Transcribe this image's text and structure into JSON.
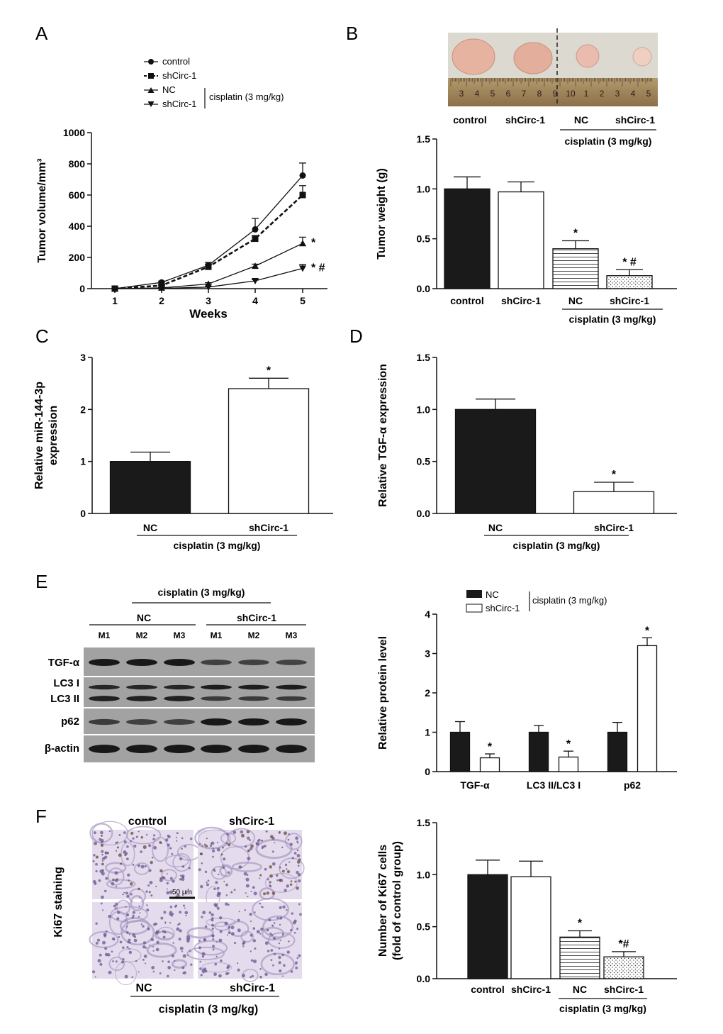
{
  "figure": {
    "panel_labels": [
      "A",
      "B",
      "C",
      "D",
      "E",
      "F"
    ],
    "colors": {
      "dark": "#1a1a1a",
      "white": "#ffffff",
      "axis": "#111111",
      "tissue": "#8c78a8"
    }
  },
  "chart_data": [
    {
      "id": "A",
      "type": "line",
      "xlabel": "Weeks",
      "ylabel": "Tumor volume/mm³",
      "x": [
        1,
        2,
        3,
        4,
        5
      ],
      "xticks": [
        "1",
        "2",
        "3",
        "4",
        "5"
      ],
      "yticks": [
        "0",
        "200",
        "400",
        "600",
        "800",
        "1000"
      ],
      "ylim": [
        0,
        1000
      ],
      "series": [
        {
          "name": "control",
          "marker": "circle",
          "dash": false,
          "values": [
            0,
            40,
            150,
            380,
            725
          ],
          "errors": [
            0,
            8,
            18,
            70,
            80
          ]
        },
        {
          "name": "shCirc-1",
          "marker": "square",
          "dash": true,
          "values": [
            0,
            20,
            140,
            320,
            600
          ],
          "errors": [
            0,
            5,
            15,
            20,
            60
          ]
        },
        {
          "name": "NC",
          "marker": "triangle-up",
          "dash": false,
          "values": [
            0,
            5,
            30,
            145,
            290
          ],
          "errors": [
            0,
            3,
            8,
            12,
            40
          ],
          "annotation": "*"
        },
        {
          "name": "shCirc-1",
          "marker": "triangle-down",
          "dash": false,
          "values": [
            0,
            2,
            10,
            50,
            130
          ],
          "errors": [
            0,
            1,
            3,
            8,
            25
          ],
          "annotation": "* #"
        }
      ],
      "legend_bracket": "cisplatin (3 mg/kg)"
    },
    {
      "id": "B",
      "type": "bar",
      "ylabel": "Tumor weight (g)",
      "categories": [
        "control",
        "shCirc-1",
        "NC",
        "shCirc-1"
      ],
      "values": [
        1.0,
        0.97,
        0.4,
        0.13
      ],
      "errors": [
        0.12,
        0.1,
        0.08,
        0.06
      ],
      "annotations": [
        "",
        "",
        "*",
        "* #"
      ],
      "fills": [
        "dark",
        "white",
        "hlines",
        "dots"
      ],
      "yticks": [
        "0.0",
        "0.5",
        "1.0",
        "1.5"
      ],
      "ylim": [
        0,
        1.5
      ],
      "group_label": "cisplatin (3 mg/kg)",
      "photo_labels": [
        "control",
        "shCirc-1",
        "NC",
        "shCirc-1"
      ],
      "photo_group_label": "cisplatin (3 mg/kg)",
      "ruler_numbers": [
        "3",
        "4",
        "5",
        "6",
        "7",
        "8",
        "9",
        "10",
        "1",
        "2",
        "3",
        "4",
        "5"
      ]
    },
    {
      "id": "C",
      "type": "bar",
      "ylabel": [
        "Relative miR-144-3p",
        "expression"
      ],
      "categories": [
        "NC",
        "shCirc-1"
      ],
      "values": [
        1.0,
        2.4
      ],
      "errors": [
        0.18,
        0.2
      ],
      "annotations": [
        "",
        "*"
      ],
      "fills": [
        "dark",
        "white"
      ],
      "yticks": [
        "0",
        "1",
        "2",
        "3"
      ],
      "ylim": [
        0,
        3
      ],
      "group_label": "cisplatin (3 mg/kg)"
    },
    {
      "id": "D",
      "type": "bar",
      "ylabel": "Relative TGF-α expression",
      "categories": [
        "NC",
        "shCirc-1"
      ],
      "values": [
        1.0,
        0.21
      ],
      "errors": [
        0.1,
        0.09
      ],
      "annotations": [
        "",
        "*"
      ],
      "fills": [
        "dark",
        "white"
      ],
      "yticks": [
        "0.0",
        "0.5",
        "1.0",
        "1.5"
      ],
      "ylim": [
        0,
        1.5
      ],
      "group_label": "cisplatin (3 mg/kg)"
    },
    {
      "id": "E",
      "type": "bar",
      "ylabel": "Relative protein level",
      "categories": [
        "TGF-α",
        "LC3 II/LC3 I",
        "p62"
      ],
      "series": [
        {
          "name": "NC",
          "fill": "dark",
          "values": [
            1.0,
            1.0,
            1.0
          ],
          "errors": [
            0.27,
            0.17,
            0.25
          ],
          "annotations": [
            "",
            "",
            ""
          ]
        },
        {
          "name": "shCirc-1",
          "fill": "white",
          "values": [
            0.35,
            0.37,
            3.2
          ],
          "errors": [
            0.1,
            0.15,
            0.2
          ],
          "annotations": [
            "*",
            "*",
            "*"
          ]
        }
      ],
      "yticks": [
        "0",
        "1",
        "2",
        "3",
        "4"
      ],
      "ylim": [
        0,
        4
      ],
      "legend_bracket": "cisplatin (3 mg/kg)"
    },
    {
      "id": "F",
      "type": "bar",
      "ylabel": [
        "Number of Ki67 cells",
        "(fold of  control group)"
      ],
      "categories": [
        "control",
        "shCirc-1",
        "NC",
        "shCirc-1"
      ],
      "values": [
        1.0,
        0.98,
        0.4,
        0.21
      ],
      "errors": [
        0.14,
        0.15,
        0.06,
        0.05
      ],
      "annotations": [
        "",
        "",
        "*",
        "*#"
      ],
      "fills": [
        "dark",
        "white",
        "hlines",
        "dots"
      ],
      "yticks": [
        "0.0",
        "0.5",
        "1.0",
        "1.5"
      ],
      "ylim": [
        0,
        1.5
      ],
      "group_label": "cisplatin (3 mg/kg)"
    }
  ],
  "western_blot": {
    "group_label": "cisplatin (3 mg/kg)",
    "groups": [
      "NC",
      "shCirc-1"
    ],
    "lanes": [
      "M1",
      "M2",
      "M3",
      "M1",
      "M2",
      "M3"
    ],
    "rows": [
      {
        "label": "TGF-α",
        "intensity": [
          1.0,
          1.0,
          1.0,
          0.55,
          0.55,
          0.5
        ]
      },
      {
        "label": "LC3 I",
        "intensity": [
          0.85,
          0.85,
          0.85,
          0.95,
          0.95,
          0.95
        ]
      },
      {
        "label": "LC3 II",
        "intensity": [
          0.9,
          0.9,
          0.9,
          0.6,
          0.6,
          0.6
        ]
      },
      {
        "label": "p62",
        "intensity": [
          0.6,
          0.55,
          0.55,
          1.0,
          1.0,
          1.0
        ]
      },
      {
        "label": "β-actin",
        "intensity": [
          1.0,
          1.0,
          1.0,
          1.0,
          1.0,
          1.0
        ]
      }
    ]
  },
  "staining": {
    "side_label": "Ki67 staining",
    "top_labels": [
      "control",
      "shCirc-1"
    ],
    "bottom_labels": [
      "NC",
      "shCirc-1"
    ],
    "group_label": "cisplatin (3 mg/kg)",
    "scale_bar": "50 μm"
  }
}
